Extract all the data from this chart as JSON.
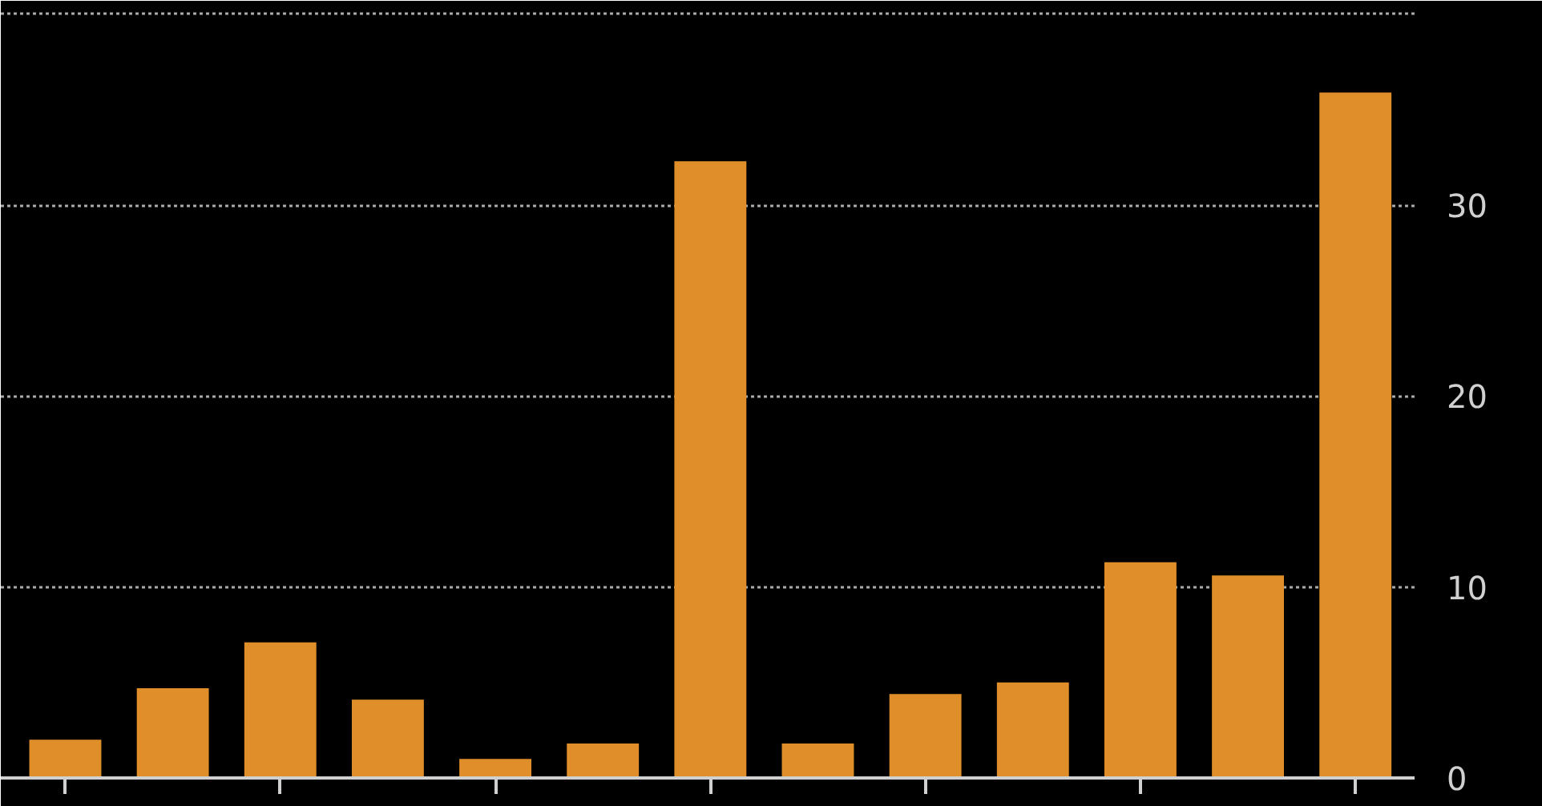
{
  "chart_data": {
    "type": "bar",
    "categories": [
      null,
      null,
      null,
      null,
      null,
      null,
      null,
      null,
      null,
      null,
      null,
      null,
      null
    ],
    "values": [
      2.0,
      4.7,
      7.1,
      4.1,
      1.0,
      1.8,
      32.3,
      1.8,
      4.4,
      5.0,
      11.3,
      10.6,
      35.9
    ],
    "color": "#e08e2a",
    "ylim": [
      0,
      40.7
    ],
    "yticks": [
      0,
      10,
      20,
      30,
      {
        "value": 40,
        "label": null
      }
    ],
    "grid": "y"
  }
}
